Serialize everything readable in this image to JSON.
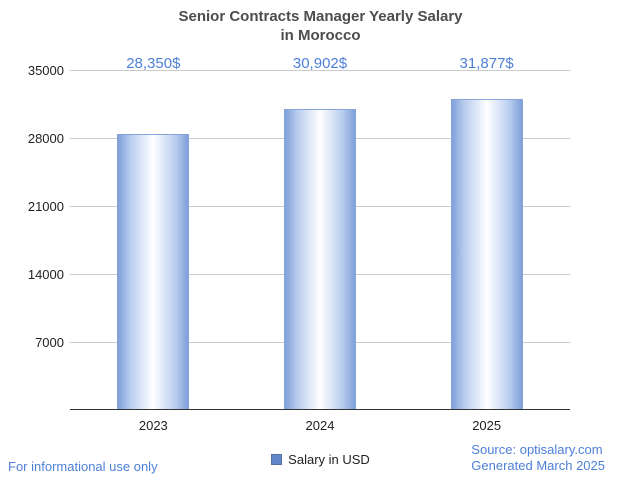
{
  "chart_data": {
    "type": "bar",
    "title_line1": "Senior Contracts Manager Yearly Salary",
    "title_line2": "in Morocco",
    "categories": [
      "2023",
      "2024",
      "2025"
    ],
    "values": [
      28350,
      30902,
      31877
    ],
    "value_labels": [
      "28,350$",
      "30,902$",
      "31,877$"
    ],
    "ylim": [
      0,
      35000
    ],
    "yticks": [
      7000,
      14000,
      21000,
      28000,
      35000
    ],
    "grid": "horizontal",
    "legend_position": "bottom",
    "series_name": "Salary in USD",
    "bar_color": "#6287cc",
    "value_label_color": "#4e80d8"
  },
  "legend": {
    "label": "Salary in USD"
  },
  "footer": {
    "left": "For informational use only",
    "source": "Source: optisalary.com",
    "generated": "Generated March 2025"
  }
}
